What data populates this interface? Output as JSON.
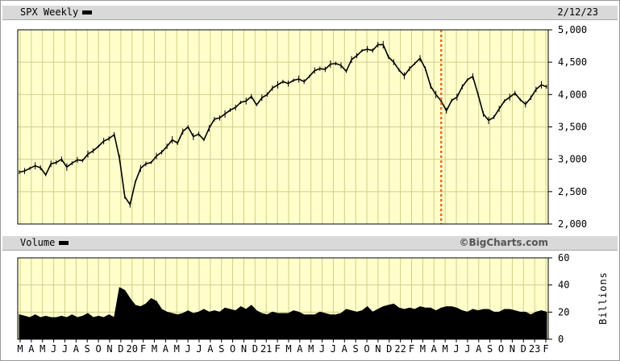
{
  "header": {
    "title": "SPX Weekly",
    "date": "2/12/23"
  },
  "volume_header": {
    "title": "Volume",
    "credit": "©BigCharts.com"
  },
  "colors": {
    "plot_bg": "#ffffcc",
    "grid": "#cfcf8c",
    "line": "#000000",
    "marker": "#e07020",
    "bar_bg": "#d9d9d9"
  },
  "chart_data": [
    {
      "type": "line",
      "series": [
        {
          "values": [
            2800,
            2820,
            2860,
            2900,
            2870,
            2760,
            2930,
            2950,
            3000,
            2880,
            2940,
            2990,
            2980,
            3080,
            3130,
            3200,
            3280,
            3320,
            3380,
            3010,
            2420,
            2300,
            2650,
            2860,
            2930,
            2950,
            3050,
            3110,
            3200,
            3300,
            3250,
            3430,
            3500,
            3350,
            3390,
            3300,
            3480,
            3620,
            3640,
            3700,
            3760,
            3800,
            3880,
            3900,
            3970,
            3840,
            3950,
            4000,
            4100,
            4150,
            4200,
            4170,
            4220,
            4240,
            4200,
            4280,
            4370,
            4400,
            4390,
            4470,
            4480,
            4450,
            4360,
            4540,
            4600,
            4680,
            4700,
            4680,
            4770,
            4770,
            4580,
            4500,
            4380,
            4290,
            4400,
            4480,
            4560,
            4400,
            4130,
            4000,
            3900,
            3750,
            3910,
            3960,
            4120,
            4230,
            4280,
            4000,
            3700,
            3600,
            3650,
            3780,
            3900,
            3960,
            4020,
            3920,
            3850,
            3950,
            4080,
            4150,
            4120
          ]
        }
      ],
      "x_tick_labels": [
        "M",
        "A",
        "M",
        "J",
        "J",
        "A",
        "S",
        "O",
        "N",
        "D",
        "20",
        "F",
        "M",
        "A",
        "M",
        "J",
        "J",
        "A",
        "S",
        "O",
        "N",
        "D",
        "21",
        "F",
        "M",
        "A",
        "M",
        "J",
        "J",
        "A",
        "S",
        "O",
        "N",
        "D",
        "22",
        "F",
        "M",
        "A",
        "M",
        "J",
        "J",
        "A",
        "S",
        "O",
        "N",
        "D",
        "23",
        "F"
      ],
      "y_ticks": [
        2000,
        2500,
        3000,
        3500,
        4000,
        4500,
        5000
      ],
      "y_tick_labels": [
        "2,000",
        "2,500",
        "3,000",
        "3,500",
        "4,000",
        "4,500",
        "5,000"
      ],
      "ylim": [
        2000,
        5000
      ],
      "grid": true,
      "annotations": [
        {
          "type": "vertical_dashed_line",
          "x_index": 80
        }
      ]
    },
    {
      "type": "area",
      "series": [
        {
          "values": [
            18,
            17,
            16,
            18,
            16,
            17,
            16,
            16,
            17,
            16,
            18,
            16,
            17,
            19,
            16,
            17,
            16,
            18,
            16,
            38,
            36,
            30,
            25,
            24,
            26,
            30,
            28,
            22,
            20,
            19,
            18,
            19,
            21,
            19,
            20,
            22,
            20,
            21,
            20,
            23,
            22,
            21,
            24,
            22,
            25,
            21,
            19,
            18,
            20,
            19,
            19,
            19,
            21,
            20,
            18,
            18,
            18,
            20,
            19,
            18,
            18,
            19,
            22,
            21,
            20,
            21,
            24,
            20,
            22,
            24,
            25,
            26,
            23,
            22,
            23,
            22,
            24,
            23,
            23,
            21,
            23,
            24,
            24,
            23,
            21,
            20,
            22,
            21,
            22,
            22,
            20,
            20,
            22,
            22,
            21,
            20,
            20,
            18,
            20,
            21,
            20
          ]
        }
      ],
      "y_ticks": [
        0,
        20,
        40,
        60
      ],
      "y_tick_labels": [
        "0",
        "20",
        "40",
        "60"
      ],
      "ylim": [
        0,
        60
      ],
      "ylabel": "Billions"
    }
  ]
}
